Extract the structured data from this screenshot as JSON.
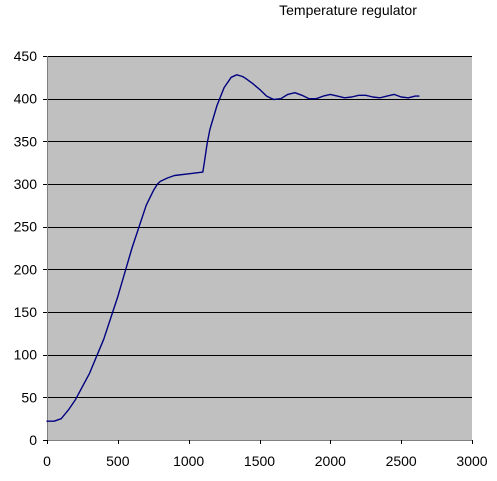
{
  "chart_data": {
    "type": "line",
    "title": "Temperature regulator",
    "xlabel": "",
    "ylabel": "",
    "xlim": [
      0,
      3000
    ],
    "ylim": [
      0,
      450
    ],
    "xticks": [
      0,
      500,
      1000,
      1500,
      2000,
      2500,
      3000
    ],
    "yticks": [
      0,
      50,
      100,
      150,
      200,
      250,
      300,
      350,
      400,
      450
    ],
    "grid": "horizontal",
    "legend": "none",
    "colors": {
      "plot_background": "#c0c0c0",
      "line": "#000080",
      "gridline": "#000000",
      "page_background": "#ffffff"
    },
    "series": [
      {
        "x": [
          0,
          50,
          100,
          150,
          200,
          300,
          400,
          500,
          600,
          700,
          750,
          780,
          800,
          850,
          900,
          1000,
          1050,
          1100,
          1110,
          1130,
          1150,
          1200,
          1250,
          1300,
          1340,
          1380,
          1400,
          1450,
          1500,
          1550,
          1600,
          1650,
          1700,
          1750,
          1800,
          1850,
          1900,
          1950,
          2000,
          2050,
          2100,
          2150,
          2200,
          2250,
          2300,
          2350,
          2400,
          2450,
          2500,
          2550,
          2600,
          2625
        ],
        "y": [
          22,
          22,
          25,
          35,
          47,
          78,
          118,
          168,
          225,
          275,
          292,
          300,
          303,
          307,
          310,
          312,
          313,
          314,
          325,
          347,
          364,
          392,
          413,
          425,
          428,
          426,
          424,
          418,
          411,
          403,
          399,
          400,
          405,
          407,
          404,
          400,
          400,
          403,
          405,
          403,
          401,
          402,
          404,
          404,
          402,
          401,
          403,
          405,
          402,
          401,
          403,
          403
        ]
      }
    ]
  }
}
